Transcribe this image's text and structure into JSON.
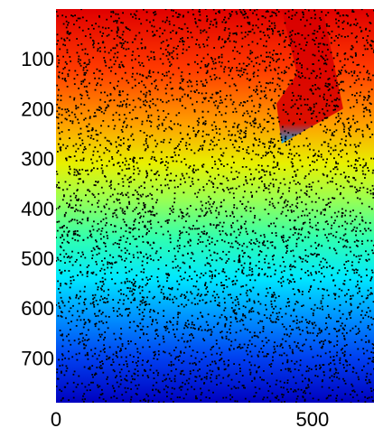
{
  "chart_data": {
    "type": "scatter",
    "title": "",
    "xlabel": "",
    "ylabel": "",
    "xlim": [
      0,
      620
    ],
    "ylim": [
      0,
      790
    ],
    "y_inverted": true,
    "grid": false,
    "legend": "none",
    "x_tick_values": [
      0,
      500
    ],
    "x_tick_labels": [
      "0",
      "500"
    ],
    "y_tick_values": [
      100,
      200,
      300,
      400,
      500,
      600,
      700
    ],
    "y_tick_labels": [
      "100",
      "200",
      "300",
      "400",
      "500",
      "600",
      "700"
    ],
    "background": {
      "type": "heatmap",
      "colormap": "jet",
      "value_trend": "decreasing with y",
      "gradient_stops": [
        {
          "y": 0,
          "color": "#e00000"
        },
        {
          "y": 120,
          "color": "#ff3a00"
        },
        {
          "y": 230,
          "color": "#ffa000"
        },
        {
          "y": 310,
          "color": "#e8f000"
        },
        {
          "y": 380,
          "color": "#9cff50"
        },
        {
          "y": 460,
          "color": "#30ffb0"
        },
        {
          "y": 540,
          "color": "#00e8ff"
        },
        {
          "y": 620,
          "color": "#0090ff"
        },
        {
          "y": 700,
          "color": "#0040f0"
        },
        {
          "y": 790,
          "color": "#0000c0"
        }
      ],
      "fault_region": {
        "polygon": [
          [
            440,
            0
          ],
          [
            520,
            0
          ],
          [
            560,
            200
          ],
          [
            440,
            270
          ],
          [
            430,
            190
          ],
          [
            470,
            130
          ]
        ],
        "colors": [
          "#d80000",
          "#00a8ff"
        ]
      }
    },
    "points": {
      "description": "dense scattered black points (~5000) covering the entire domain",
      "color": "#000000",
      "count": 5000
    }
  }
}
